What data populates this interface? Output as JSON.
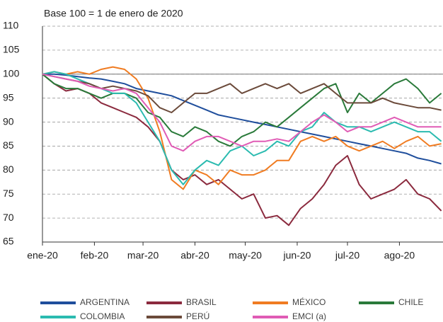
{
  "chart_data": {
    "type": "line",
    "subtitle": "Base 100 = 1 de enero de 2020",
    "x": [
      0,
      7,
      14,
      21,
      28,
      35,
      42,
      49,
      56,
      63,
      70,
      77,
      84,
      91,
      98,
      105,
      112,
      119,
      126,
      133,
      140,
      147,
      154,
      161,
      168,
      175,
      182,
      189,
      196,
      203,
      210,
      217,
      224,
      231,
      238
    ],
    "xlim": [
      0,
      239
    ],
    "xticks": [
      {
        "value": 0,
        "label": "ene-20"
      },
      {
        "value": 31,
        "label": "feb-20"
      },
      {
        "value": 60,
        "label": "mar-20"
      },
      {
        "value": 91,
        "label": "abr-20"
      },
      {
        "value": 121,
        "label": "may-20"
      },
      {
        "value": 152,
        "label": "jun-20"
      },
      {
        "value": 182,
        "label": "jul-20"
      },
      {
        "value": 213,
        "label": "ago-20"
      }
    ],
    "ylim": [
      65,
      110
    ],
    "yticks": [
      65,
      70,
      75,
      80,
      85,
      90,
      95,
      100,
      105,
      110
    ],
    "baseline": 100,
    "grid": true,
    "series": [
      {
        "name": "ARGENTINA",
        "color": "#1f4e9c",
        "values": [
          100,
          100,
          99.8,
          99.5,
          99.2,
          99,
          98.5,
          98,
          97,
          96.5,
          96,
          95.5,
          94.5,
          93.5,
          92.5,
          91.5,
          91,
          90.5,
          90,
          89.5,
          89,
          88.5,
          88,
          87.5,
          87,
          86.5,
          86,
          85.5,
          85,
          84.5,
          84,
          83.5,
          82.5,
          82,
          81.3
        ]
      },
      {
        "name": "BRASIL",
        "color": "#8b2a3e",
        "values": [
          100,
          98,
          96.5,
          97,
          96,
          94,
          93,
          92,
          91,
          89,
          86,
          80,
          78,
          79,
          77,
          78,
          76,
          74,
          75,
          70,
          70.5,
          68.5,
          72,
          74,
          77,
          81,
          83,
          77,
          74,
          75,
          76,
          78,
          75,
          74,
          71.5
        ]
      },
      {
        "name": "MÉXICO",
        "color": "#f07c22",
        "values": [
          100,
          100.5,
          100,
          100.5,
          100,
          101,
          101.5,
          101,
          99,
          95,
          88,
          78,
          76,
          80,
          79,
          77,
          80,
          79,
          79,
          80,
          82,
          82,
          86,
          87,
          86,
          87,
          85,
          84,
          85,
          86,
          84.5,
          86,
          87,
          85,
          85.5
        ]
      },
      {
        "name": "CHILE",
        "color": "#2a7a3a",
        "values": [
          100,
          98,
          97,
          97,
          96,
          95,
          96,
          96,
          95,
          92,
          91,
          88,
          87,
          89,
          88,
          86,
          85,
          87,
          88,
          90,
          89,
          91,
          93,
          95,
          97,
          98,
          92,
          96,
          94,
          96,
          98,
          99,
          97,
          94,
          96
        ]
      },
      {
        "name": "COLOMBIA",
        "color": "#2bbbb0",
        "values": [
          100,
          100.5,
          100,
          99,
          98,
          97,
          96,
          96,
          94,
          90,
          86,
          80,
          77,
          80,
          82,
          81,
          84,
          85,
          83,
          84,
          86,
          85,
          88,
          89,
          92,
          90,
          89,
          89,
          88,
          89,
          90,
          89,
          88,
          88,
          86
        ]
      },
      {
        "name": "PERÚ",
        "color": "#6b4a3a",
        "values": [
          100,
          99.5,
          99,
          98.5,
          98,
          97,
          97.5,
          97,
          96.5,
          95.5,
          93,
          92,
          94,
          96,
          96,
          97,
          98,
          96,
          97,
          98,
          97,
          98,
          96,
          97,
          98,
          96,
          94,
          94,
          94,
          95,
          94,
          93.5,
          93,
          93,
          92.5
        ]
      },
      {
        "name": "EMCI (a)",
        "color": "#e05cb5",
        "values": [
          100,
          99.5,
          99,
          98.5,
          97.5,
          97,
          96.5,
          97,
          96,
          93,
          90,
          85,
          84,
          86,
          87,
          87,
          86,
          85,
          86,
          86,
          86.5,
          86,
          88,
          90,
          91.5,
          90,
          88,
          89,
          89,
          90,
          91,
          90,
          89,
          89,
          89
        ]
      }
    ]
  }
}
